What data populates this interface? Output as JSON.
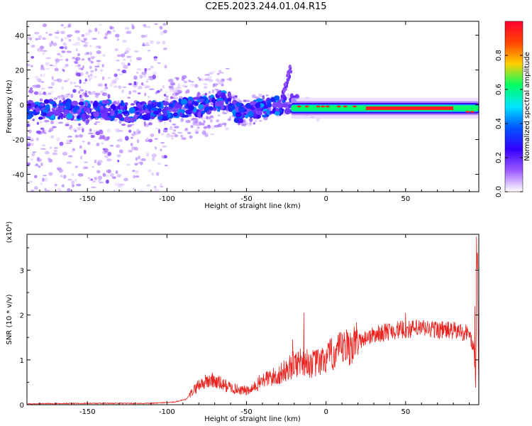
{
  "title": "C2E5.2023.244.01.04.R15",
  "chart_data": [
    {
      "type": "heatmap",
      "xlabel": "Height of straight line (km)",
      "ylabel": "Frequency (Hz)",
      "xlim": [
        -188,
        96
      ],
      "ylim": [
        -50,
        48
      ],
      "xticks": [
        -150,
        -100,
        -50,
        0,
        50
      ],
      "yticks": [
        -40,
        -20,
        0,
        20,
        40
      ],
      "colorbar": {
        "label": "Normalized spectral amplitude",
        "range": [
          0,
          1
        ],
        "ticks": [
          "0.0",
          "0.2",
          "0.4",
          "0.6",
          "0.8"
        ],
        "colors": [
          "#ffffff",
          "#9b59ff",
          "#3300ff",
          "#0055ff",
          "#00e5ff",
          "#00ff66",
          "#ffd000",
          "#ff4400",
          "#ff0033"
        ]
      },
      "ridge": [
        {
          "x": -188,
          "y": -3
        },
        {
          "x": -150,
          "y": -3
        },
        {
          "x": -120,
          "y": -4
        },
        {
          "x": -100,
          "y": -3
        },
        {
          "x": -80,
          "y": -1
        },
        {
          "x": -62,
          "y": 3
        },
        {
          "x": -55,
          "y": -5
        },
        {
          "x": -45,
          "y": -3
        },
        {
          "x": -30,
          "y": 0
        },
        {
          "x": -20,
          "y": 0
        },
        {
          "x": 0,
          "y": -2
        },
        {
          "x": 25,
          "y": -2
        },
        {
          "x": 80,
          "y": -2
        },
        {
          "x": 96,
          "y": -4
        }
      ],
      "peak_band": {
        "x_start": -20,
        "x_end": 80,
        "y": -2,
        "amplitude": 0.95
      }
    },
    {
      "type": "line",
      "xlabel": "Height of straight line (km)",
      "ylabel": "SNR (10 * v/v)",
      "scale_label": "(x10⁴)",
      "xlim": [
        -188,
        96
      ],
      "ylim": [
        0,
        3.8
      ],
      "xticks": [
        -150,
        -100,
        -50,
        0,
        50
      ],
      "yticks": [
        0,
        1,
        2,
        3
      ],
      "color": "#e8231f",
      "envelope": [
        {
          "x": -188,
          "y": 0.02
        },
        {
          "x": -150,
          "y": 0.03
        },
        {
          "x": -110,
          "y": 0.03
        },
        {
          "x": -95,
          "y": 0.06
        },
        {
          "x": -88,
          "y": 0.12
        },
        {
          "x": -80,
          "y": 0.45
        },
        {
          "x": -72,
          "y": 0.55
        },
        {
          "x": -65,
          "y": 0.45
        },
        {
          "x": -57,
          "y": 0.35
        },
        {
          "x": -48,
          "y": 0.3
        },
        {
          "x": -40,
          "y": 0.55
        },
        {
          "x": -30,
          "y": 0.65
        },
        {
          "x": -20,
          "y": 0.9
        },
        {
          "x": -15,
          "y": 1.0
        },
        {
          "x": -10,
          "y": 0.9
        },
        {
          "x": -3,
          "y": 0.95
        },
        {
          "x": 5,
          "y": 1.15
        },
        {
          "x": 15,
          "y": 1.3
        },
        {
          "x": 25,
          "y": 1.5
        },
        {
          "x": 40,
          "y": 1.65
        },
        {
          "x": 60,
          "y": 1.7
        },
        {
          "x": 80,
          "y": 1.65
        },
        {
          "x": 90,
          "y": 1.6
        },
        {
          "x": 93,
          "y": 1.2
        },
        {
          "x": 94,
          "y": 0.4
        },
        {
          "x": 95,
          "y": 3.8
        },
        {
          "x": 96,
          "y": 0.2
        }
      ],
      "spikes": [
        {
          "x": -14,
          "y": 2.05
        },
        {
          "x": -21,
          "y": 1.45
        },
        {
          "x": 50,
          "y": 2.05
        },
        {
          "x": 94.5,
          "y": 3.75
        },
        {
          "x": 93.5,
          "y": 2.2
        }
      ]
    }
  ]
}
